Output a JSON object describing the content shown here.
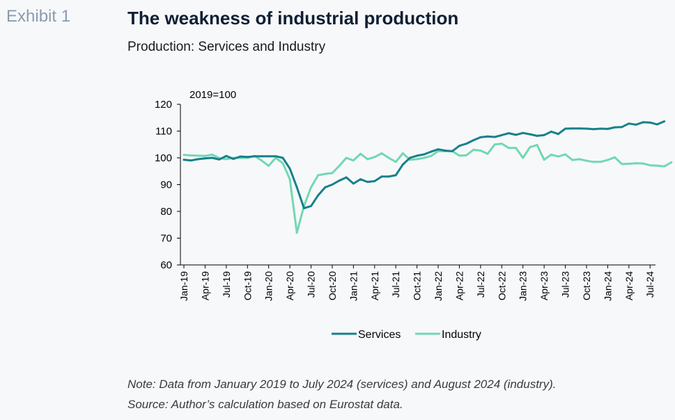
{
  "exhibit_label": "Exhibit 1",
  "title": "The weakness of industrial production",
  "subtitle": "Production: Services and Industry",
  "note": "Note: Data from January 2019 to July 2024 (services) and August 2024 (industry).",
  "source": "Source: Author’s calculation based on Eurostat data.",
  "chart_data": {
    "type": "line",
    "title": "",
    "unit_label": "2019=100",
    "xlabel": "",
    "ylabel": "",
    "ylim": [
      60,
      120
    ],
    "yticks": [
      60,
      70,
      80,
      90,
      100,
      110,
      120
    ],
    "grid": false,
    "legend_position": "bottom",
    "x_tick_labels": [
      "Jan-19",
      "Apr-19",
      "Jul-19",
      "Oct-19",
      "Jan-20",
      "Apr-20",
      "Jul-20",
      "Oct-20",
      "Jan-21",
      "Apr-21",
      "Jul-21",
      "Oct-21",
      "Jan-22",
      "Apr-22",
      "Jul-22",
      "Oct-22",
      "Jan-23",
      "Apr-23",
      "Jul-23",
      "Oct-23",
      "Jan-24",
      "Apr-24",
      "Jul-24"
    ],
    "series": [
      {
        "name": "Services",
        "color": "#17818a",
        "start": "Jan-19",
        "values": [
          99.3,
          99.0,
          99.5,
          99.8,
          100.0,
          99.4,
          100.7,
          99.6,
          100.5,
          100.3,
          100.6,
          100.6,
          100.6,
          100.6,
          100.0,
          96.0,
          89.0,
          81.2,
          82.0,
          86.0,
          89.0,
          90.0,
          91.5,
          92.7,
          90.4,
          92.0,
          91.0,
          91.3,
          93.0,
          93.0,
          93.5,
          97.5,
          100.0,
          100.8,
          101.3,
          102.3,
          103.2,
          102.7,
          102.5,
          104.5,
          105.3,
          106.6,
          107.7,
          108.0,
          107.8,
          108.5,
          109.2,
          108.6,
          109.3,
          108.8,
          108.2,
          108.5,
          109.8,
          108.9,
          110.9,
          111.0,
          111.0,
          110.9,
          110.7,
          110.9,
          110.8,
          111.4,
          111.5,
          112.8,
          112.4,
          113.3,
          113.2,
          112.5,
          113.6
        ]
      },
      {
        "name": "Industry",
        "color": "#72d8b2",
        "start": "Jan-19",
        "values": [
          101.1,
          100.9,
          100.8,
          100.7,
          101.2,
          99.9,
          99.5,
          100.0,
          100.0,
          100.0,
          100.7,
          99.0,
          97.0,
          100.0,
          98.0,
          92.0,
          72.0,
          82.0,
          89.0,
          93.5,
          94.0,
          94.3,
          97.0,
          100.0,
          99.0,
          101.5,
          99.5,
          100.3,
          101.7,
          100.0,
          98.5,
          101.7,
          99.3,
          99.5,
          100.0,
          100.7,
          102.5,
          102.5,
          102.5,
          100.8,
          101.0,
          103.0,
          102.7,
          101.5,
          105.0,
          105.3,
          103.7,
          103.7,
          100.0,
          104.0,
          104.8,
          99.3,
          101.2,
          100.5,
          101.3,
          99.2,
          99.5,
          98.9,
          98.5,
          98.5,
          99.2,
          100.2,
          97.7,
          97.8,
          98.0,
          97.9,
          97.2,
          97.1,
          96.8,
          98.3
        ]
      }
    ]
  }
}
